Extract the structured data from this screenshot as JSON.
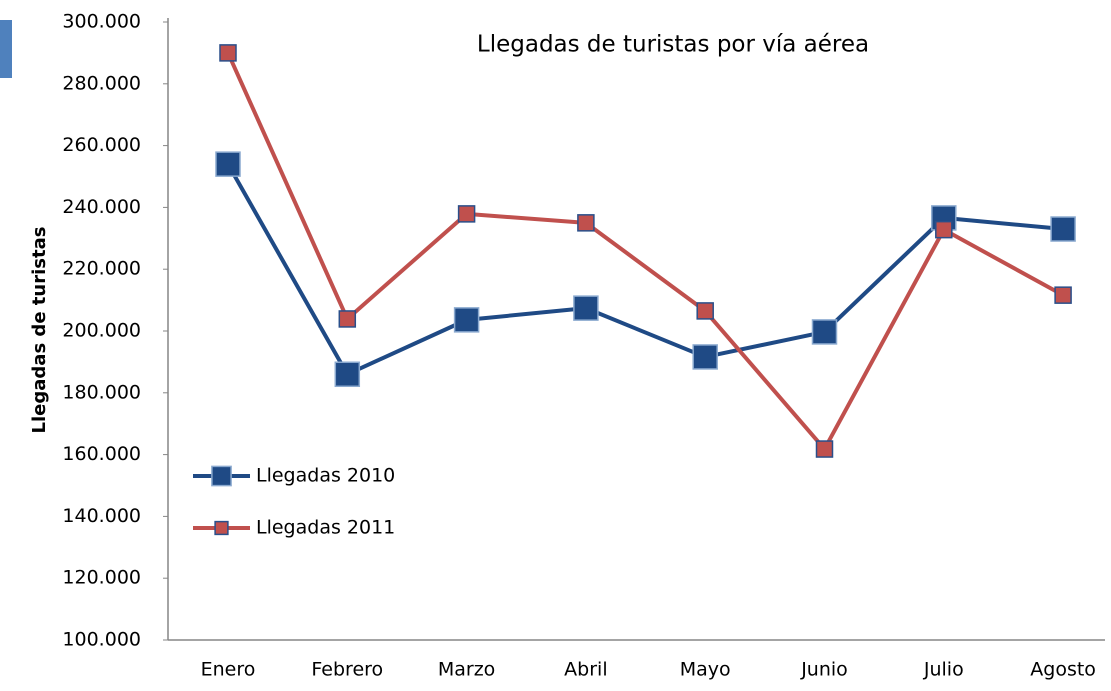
{
  "chart_data": {
    "type": "line",
    "title": "Llegadas de turistas por vía aérea",
    "y_label": "Llegadas de turistas",
    "categories": [
      "Enero",
      "Febrero",
      "Marzo",
      "Abril",
      "Mayo",
      "Junio",
      "Julio",
      "Agosto"
    ],
    "series": [
      {
        "name": "Llegadas 2010",
        "color": "#1f4a85",
        "values": [
          254000,
          186000,
          203600,
          207400,
          191600,
          199700,
          236600,
          233000
        ]
      },
      {
        "name": "Llegadas 2011",
        "color": "#c0504d",
        "values": [
          290000,
          203900,
          237900,
          235000,
          206500,
          161800,
          232800,
          211600
        ]
      }
    ],
    "ylim": [
      100000,
      300000
    ],
    "yticks": [
      {
        "value": 100000,
        "label": "100.000"
      },
      {
        "value": 120000,
        "label": "120.000"
      },
      {
        "value": 140000,
        "label": "140.000"
      },
      {
        "value": 160000,
        "label": "160.000"
      },
      {
        "value": 180000,
        "label": "180.000"
      },
      {
        "value": 200000,
        "label": "200.000"
      },
      {
        "value": 220000,
        "label": "220.000"
      },
      {
        "value": 240000,
        "label": "240.000"
      },
      {
        "value": 260000,
        "label": "260.000"
      },
      {
        "value": 280000,
        "label": "280.000"
      },
      {
        "value": 300000,
        "label": "300.000"
      }
    ],
    "legend": "left"
  }
}
